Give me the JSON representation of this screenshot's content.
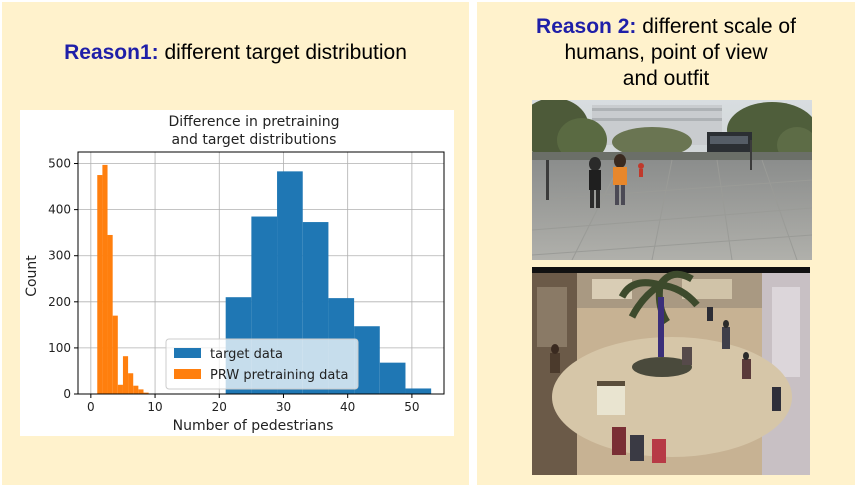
{
  "left_panel": {
    "heading_emph": "Reason1:",
    "heading_rest": " different target distribution"
  },
  "right_panel": {
    "heading_emph": "Reason 2:",
    "heading_line1_rest": " different scale of",
    "heading_line2": "humans, point of view",
    "heading_line3": "and outfit",
    "photos": [
      "street-scene-photo",
      "shopping-mall-photo"
    ]
  },
  "colors": {
    "panel_background": "#fff2cc",
    "heading_emphasis": "#1f1fa8",
    "target_series": "#1f77b4",
    "prw_series": "#ff7f0e"
  },
  "chart_data": {
    "type": "bar",
    "title_line1": "Difference in pretraining",
    "title_line2": "and target distributions",
    "xlabel": "Number of pedestrians",
    "ylabel": "Count",
    "xlim": [
      -2,
      55
    ],
    "ylim": [
      0,
      525
    ],
    "xticks": [
      0,
      10,
      20,
      30,
      40,
      50
    ],
    "yticks": [
      0,
      100,
      200,
      300,
      400,
      500
    ],
    "grid": true,
    "legend_position": "lower-center",
    "series": [
      {
        "name": "target data",
        "color": "#1f77b4",
        "bins": [
          {
            "x0": 21,
            "x1": 25,
            "count": 210
          },
          {
            "x0": 25,
            "x1": 29,
            "count": 385
          },
          {
            "x0": 29,
            "x1": 33,
            "count": 483
          },
          {
            "x0": 33,
            "x1": 37,
            "count": 373
          },
          {
            "x0": 37,
            "x1": 41,
            "count": 208
          },
          {
            "x0": 41,
            "x1": 45,
            "count": 147
          },
          {
            "x0": 45,
            "x1": 49,
            "count": 68
          },
          {
            "x0": 49,
            "x1": 53,
            "count": 12
          }
        ]
      },
      {
        "name": "PRW pretraining data",
        "color": "#ff7f0e",
        "bins": [
          {
            "x0": 1.0,
            "x1": 1.8,
            "count": 475
          },
          {
            "x0": 1.8,
            "x1": 2.6,
            "count": 497
          },
          {
            "x0": 2.6,
            "x1": 3.4,
            "count": 345
          },
          {
            "x0": 3.4,
            "x1": 4.2,
            "count": 170
          },
          {
            "x0": 4.2,
            "x1": 5.0,
            "count": 20
          },
          {
            "x0": 5.0,
            "x1": 5.8,
            "count": 82
          },
          {
            "x0": 5.8,
            "x1": 6.6,
            "count": 45
          },
          {
            "x0": 6.6,
            "x1": 7.4,
            "count": 18
          },
          {
            "x0": 7.4,
            "x1": 8.2,
            "count": 10
          },
          {
            "x0": 8.2,
            "x1": 9.0,
            "count": 3
          }
        ]
      }
    ]
  }
}
